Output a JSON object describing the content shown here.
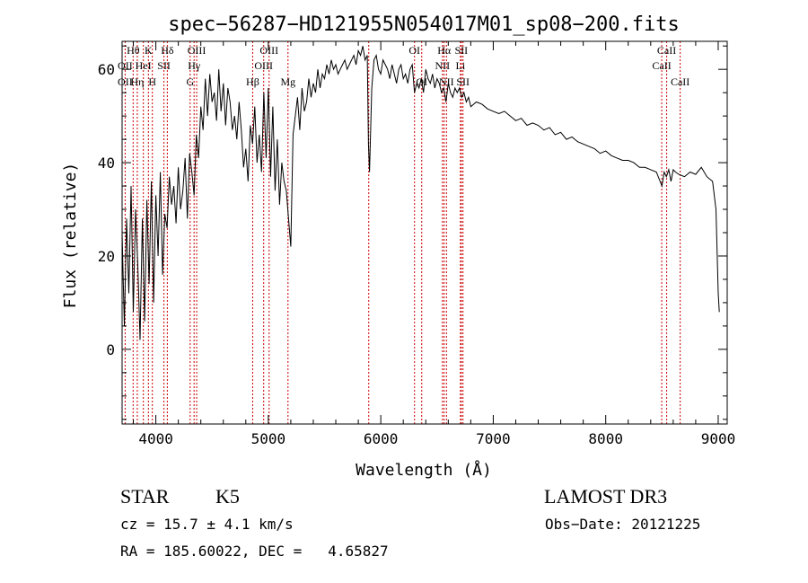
{
  "chart_data": {
    "type": "line",
    "title": "spec−56287−HD121955N054017M01_sp08−200.fits",
    "xlabel": "Wavelength (Å)",
    "ylabel": "Flux (relative)",
    "xlim": [
      3700,
      9080
    ],
    "ylim": [
      -16,
      66
    ],
    "xticks": [
      4000,
      5000,
      6000,
      7000,
      8000,
      9000
    ],
    "yticks": [
      0,
      20,
      40,
      60
    ],
    "grid": false,
    "series": [
      {
        "x": [
          3700,
          3720,
          3740,
          3760,
          3780,
          3800,
          3820,
          3840,
          3860,
          3880,
          3900,
          3920,
          3940,
          3960,
          3980,
          4000,
          4020,
          4040,
          4060,
          4080,
          4100,
          4120,
          4140,
          4160,
          4180,
          4200,
          4220,
          4240,
          4260,
          4280,
          4300,
          4320,
          4340,
          4360,
          4380,
          4400,
          4420,
          4440,
          4460,
          4480,
          4500,
          4520,
          4540,
          4560,
          4580,
          4600,
          4620,
          4640,
          4660,
          4680,
          4700,
          4720,
          4740,
          4760,
          4780,
          4800,
          4820,
          4840,
          4860,
          4880,
          4900,
          4920,
          4940,
          4960,
          4980,
          5000,
          5020,
          5040,
          5060,
          5080,
          5100,
          5120,
          5140,
          5160,
          5180,
          5200,
          5220,
          5240,
          5260,
          5280,
          5300,
          5320,
          5340,
          5360,
          5380,
          5400,
          5420,
          5440,
          5460,
          5480,
          5500,
          5520,
          5540,
          5560,
          5580,
          5600,
          5620,
          5640,
          5660,
          5680,
          5700,
          5720,
          5740,
          5760,
          5780,
          5800,
          5820,
          5840,
          5860,
          5880,
          5890,
          5900,
          5920,
          5940,
          5960,
          5980,
          6000,
          6020,
          6040,
          6060,
          6080,
          6100,
          6120,
          6140,
          6160,
          6180,
          6200,
          6220,
          6240,
          6260,
          6280,
          6300,
          6320,
          6340,
          6360,
          6380,
          6400,
          6420,
          6440,
          6460,
          6480,
          6500,
          6520,
          6540,
          6560,
          6580,
          6600,
          6620,
          6640,
          6660,
          6680,
          6700,
          6720,
          6740,
          6760,
          6780,
          6800,
          6850,
          6900,
          6950,
          7000,
          7050,
          7100,
          7150,
          7200,
          7250,
          7300,
          7350,
          7400,
          7450,
          7500,
          7550,
          7600,
          7650,
          7700,
          7750,
          7800,
          7850,
          7900,
          7950,
          8000,
          8050,
          8100,
          8150,
          8200,
          8250,
          8300,
          8350,
          8400,
          8450,
          8500,
          8520,
          8540,
          8560,
          8580,
          8600,
          8620,
          8650,
          8700,
          8750,
          8800,
          8850,
          8900,
          8950,
          8980,
          9000,
          9010
        ],
        "values": [
          25,
          5,
          28,
          12,
          35,
          8,
          30,
          18,
          2,
          28,
          6,
          32,
          14,
          36,
          10,
          33,
          20,
          38,
          16,
          29,
          26,
          37,
          31,
          35,
          27,
          39,
          30,
          34,
          41,
          28,
          42,
          38,
          33,
          46,
          41,
          52,
          47,
          58,
          50,
          59,
          53,
          55,
          49,
          60,
          51,
          57,
          48,
          56,
          53,
          47,
          50,
          45,
          53,
          47,
          39,
          43,
          36,
          48,
          44,
          52,
          40,
          46,
          38,
          55,
          41,
          56,
          37,
          52,
          34,
          45,
          31,
          40,
          36,
          34,
          28,
          22,
          46,
          50,
          54,
          47,
          56,
          51,
          53,
          58,
          54,
          57,
          55,
          60,
          56,
          59,
          58,
          61,
          59,
          62,
          60,
          61,
          59,
          60,
          61,
          62,
          60,
          61,
          62,
          63,
          61,
          64,
          63,
          65,
          62,
          63,
          44,
          38,
          56,
          62,
          63,
          60,
          59,
          62,
          61,
          60,
          58,
          61,
          59,
          57,
          60,
          61,
          58,
          59,
          57,
          60,
          61,
          55,
          57,
          56,
          58,
          55,
          60,
          58,
          57,
          59,
          56,
          58,
          57,
          55,
          56,
          53,
          57,
          55,
          54,
          56,
          55,
          56,
          54,
          55,
          53,
          54,
          52,
          53,
          52.5,
          51.5,
          51,
          50.5,
          51,
          50,
          49,
          49.5,
          48,
          48.5,
          48,
          47,
          47.5,
          46,
          46.5,
          45,
          45.5,
          44.5,
          44,
          43.5,
          43,
          42,
          42.5,
          41.5,
          41,
          40.5,
          40.5,
          40,
          39,
          39,
          38.5,
          38,
          35,
          38,
          37,
          38.5,
          36,
          38.5,
          38,
          37.5,
          37,
          38,
          37.5,
          39,
          37,
          36,
          30,
          12,
          8
        ]
      }
    ],
    "line_labels": [
      {
        "label": "Hθ",
        "wl": 3798,
        "row": 0
      },
      {
        "label": "OII",
        "wl": 3727,
        "row": 1
      },
      {
        "label": "OII",
        "wl": 3727,
        "row": 2
      },
      {
        "label": "Hη",
        "wl": 3835,
        "row": 2
      },
      {
        "label": "K",
        "wl": 3934,
        "row": 0
      },
      {
        "label": "HeI",
        "wl": 3889,
        "row": 1
      },
      {
        "label": "SII",
        "wl": 4072,
        "row": 1
      },
      {
        "label": "H",
        "wl": 3969,
        "row": 2
      },
      {
        "label": "Hδ",
        "wl": 4102,
        "row": 0
      },
      {
        "label": "OIII",
        "wl": 4363,
        "row": 0
      },
      {
        "label": "Hγ",
        "wl": 4340,
        "row": 1
      },
      {
        "label": "G",
        "wl": 4305,
        "row": 2
      },
      {
        "label": "Hβ",
        "wl": 4861,
        "row": 2
      },
      {
        "label": "OIII",
        "wl": 5007,
        "row": 0
      },
      {
        "label": "OIII",
        "wl": 4959,
        "row": 1
      },
      {
        "label": "Mg",
        "wl": 5175,
        "row": 2
      },
      {
        "label": "OI",
        "wl": 6300,
        "row": 0
      },
      {
        "label": "OI",
        "wl": 6364,
        "row": 2
      },
      {
        "label": "Hα",
        "wl": 6563,
        "row": 0
      },
      {
        "label": "SII",
        "wl": 6716,
        "row": 0
      },
      {
        "label": "NII",
        "wl": 6548,
        "row": 1
      },
      {
        "label": "Li",
        "wl": 6708,
        "row": 1
      },
      {
        "label": "NII",
        "wl": 6584,
        "row": 2
      },
      {
        "label": "SII",
        "wl": 6731,
        "row": 2
      },
      {
        "label": "CaII",
        "wl": 8542,
        "row": 0
      },
      {
        "label": "CaII",
        "wl": 8498,
        "row": 1
      },
      {
        "label": "CaII",
        "wl": 8662,
        "row": 2
      }
    ],
    "line_marks": [
      3727,
      3798,
      3835,
      3889,
      3934,
      3969,
      4072,
      4102,
      4305,
      4340,
      4363,
      4861,
      4959,
      5007,
      5175,
      5893,
      6300,
      6364,
      6548,
      6563,
      6584,
      6708,
      6716,
      6731,
      8498,
      8542,
      8662
    ],
    "line_mark_color": "#cc0000"
  },
  "info": {
    "object_class": "STAR",
    "subclass": "K5",
    "survey": "LAMOST DR3",
    "cz": "cz = 15.7 ± 4.1 km/s",
    "obs_date": "Obs−Date: 20121225",
    "coords": "RA = 185.60022, DEC =   4.65827"
  }
}
